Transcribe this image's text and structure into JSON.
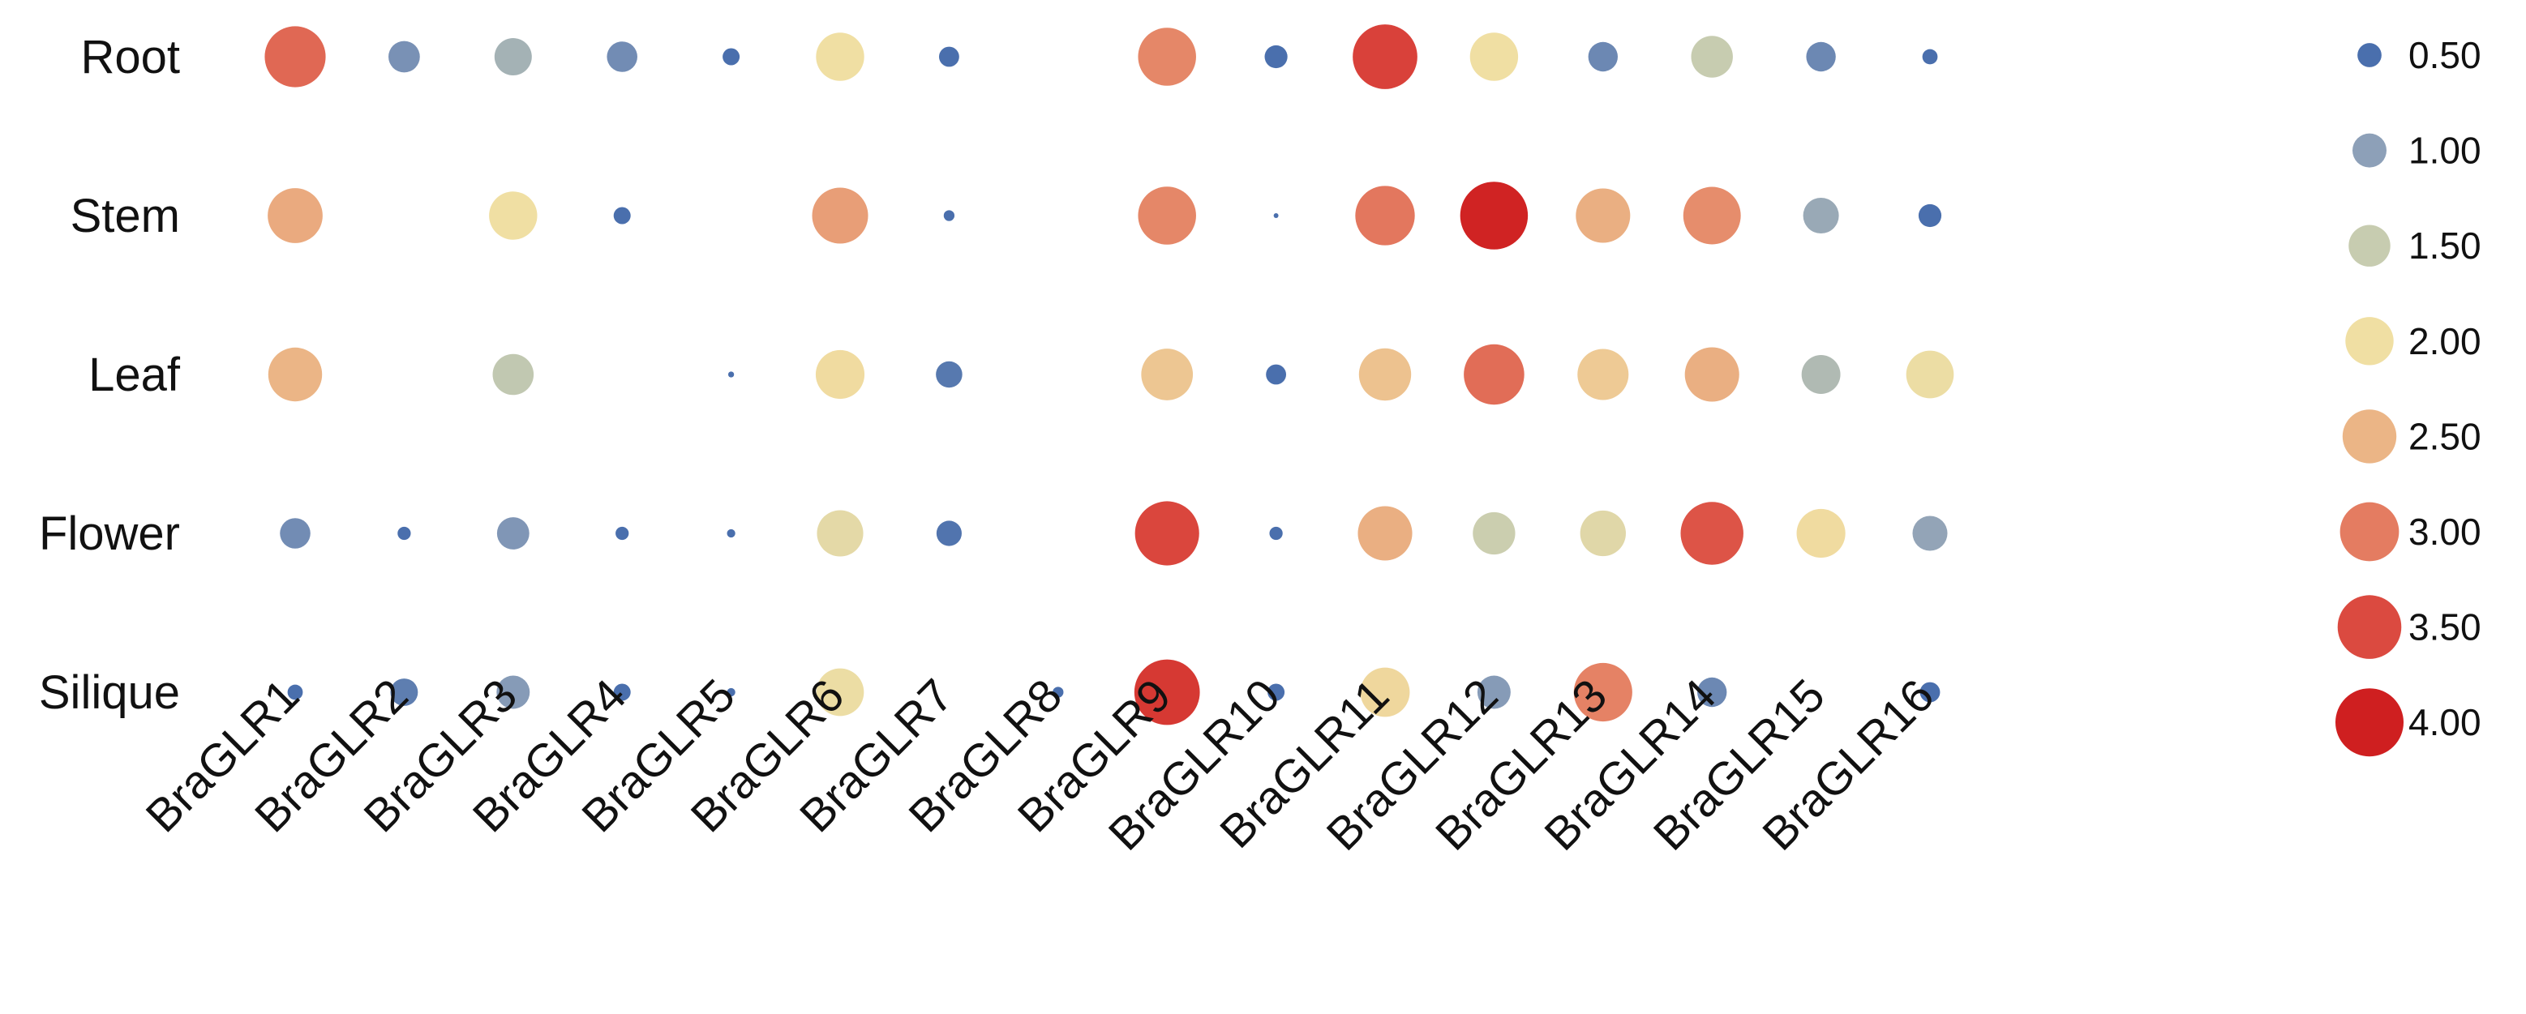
{
  "chart_data": {
    "type": "bubble",
    "rows": [
      "Root",
      "Stem",
      "Leaf",
      "Flower",
      "Silique"
    ],
    "columns": [
      "BraGLR1",
      "BraGLR2",
      "BraGLR3",
      "BraGLR4",
      "BraGLR5",
      "BraGLR6",
      "BraGLR7",
      "BraGLR8",
      "BraGLR9",
      "BraGLR10",
      "BraGLR11",
      "BraGLR12",
      "BraGLR13",
      "BraGLR14",
      "BraGLR15",
      "BraGLR16"
    ],
    "values": [
      [
        3.2,
        0.85,
        1.2,
        0.8,
        0.25,
        2.0,
        0.35,
        0.0,
        2.9,
        0.45,
        3.6,
        2.0,
        0.75,
        1.5,
        0.75,
        0.2
      ],
      [
        2.6,
        0.0,
        2.0,
        0.25,
        0.0,
        2.7,
        0.1,
        0.0,
        2.9,
        0.02,
        3.05,
        3.95,
        2.55,
        2.85,
        1.1,
        0.45
      ],
      [
        2.5,
        0.0,
        1.45,
        0.0,
        0.03,
        2.05,
        0.6,
        0.0,
        2.3,
        0.35,
        2.35,
        3.15,
        2.25,
        2.55,
        1.3,
        1.95
      ],
      [
        0.8,
        0.15,
        0.9,
        0.15,
        0.06,
        1.85,
        0.55,
        0.0,
        3.55,
        0.15,
        2.55,
        1.55,
        1.8,
        3.4,
        2.05,
        1.05
      ],
      [
        0.2,
        0.65,
        0.95,
        0.25,
        0.06,
        1.95,
        0.0,
        0.1,
        3.7,
        0.25,
        2.1,
        0.95,
        2.95,
        0.75,
        0.0,
        0.35
      ]
    ],
    "legend": {
      "labels": [
        "0.50",
        "1.00",
        "1.50",
        "2.00",
        "2.50",
        "3.00",
        "3.50",
        "4.00"
      ],
      "values": [
        0.5,
        1.0,
        1.5,
        2.0,
        2.5,
        3.0,
        3.5,
        4.0
      ],
      "colors": [
        "#4a6fad",
        "#8da0b8",
        "#c7ccb0",
        "#f0dfa3",
        "#ebb586",
        "#e47c61",
        "#db4a40",
        "#cf1f20"
      ],
      "placement": "right"
    },
    "range": [
      0,
      4
    ]
  }
}
